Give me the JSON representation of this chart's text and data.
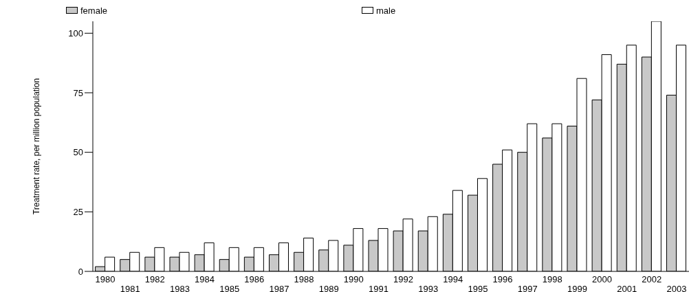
{
  "chart_data": {
    "type": "bar",
    "ylabel": "Treatment rate, per million population",
    "categories": [
      "1980",
      "1981",
      "1982",
      "1983",
      "1984",
      "1985",
      "1986",
      "1987",
      "1988",
      "1989",
      "1990",
      "1991",
      "1992",
      "1993",
      "1994",
      "1995",
      "1996",
      "1997",
      "1998",
      "1999",
      "2000",
      "2001",
      "2002",
      "2003"
    ],
    "series": [
      {
        "name": "female",
        "color": "#c8c8c8",
        "values": [
          2,
          5,
          6,
          6,
          7,
          5,
          6,
          7,
          8,
          9,
          11,
          13,
          17,
          17,
          24,
          32,
          45,
          50,
          56,
          61,
          72,
          87,
          90,
          74
        ]
      },
      {
        "name": "male",
        "color": "#ffffff",
        "values": [
          6,
          8,
          10,
          8,
          12,
          10,
          10,
          12,
          14,
          13,
          18,
          18,
          22,
          23,
          34,
          39,
          51,
          62,
          62,
          81,
          91,
          95,
          105,
          95
        ]
      }
    ],
    "ylim": [
      0,
      105
    ],
    "yticks": [
      0,
      25,
      50,
      75,
      100
    ],
    "grid": false,
    "legend": "top"
  }
}
